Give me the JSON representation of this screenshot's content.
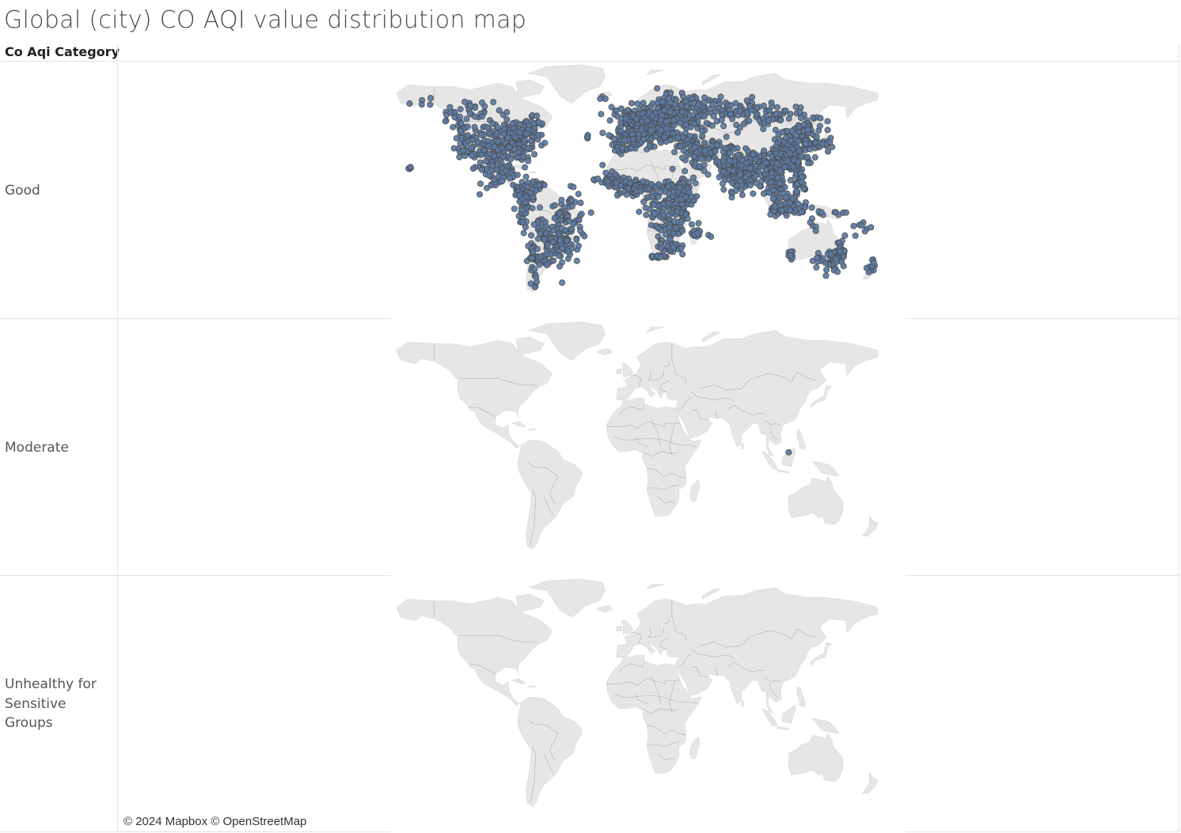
{
  "title": "Global (city) CO AQI value distribution map",
  "header": {
    "column_label": "Co Aqi Category"
  },
  "rows": [
    {
      "label": "Good"
    },
    {
      "label": "Moderate"
    },
    {
      "label": "Unhealthy for Sensitive Groups"
    }
  ],
  "attribution": "© 2024 Mapbox © OpenStreetMap",
  "colors": {
    "land": "#e6e6e6",
    "water": "#ffffff",
    "border": "#9a9a9a",
    "marker_fill": "#5a7aa3",
    "marker_stroke": "#4d4d4d"
  },
  "markers": {
    "Good": "thousands of city points across all populated continents",
    "Moderate": [
      {
        "lat": 4.5,
        "lon": 114.0
      }
    ],
    "Unhealthy for Sensitive Groups": []
  }
}
